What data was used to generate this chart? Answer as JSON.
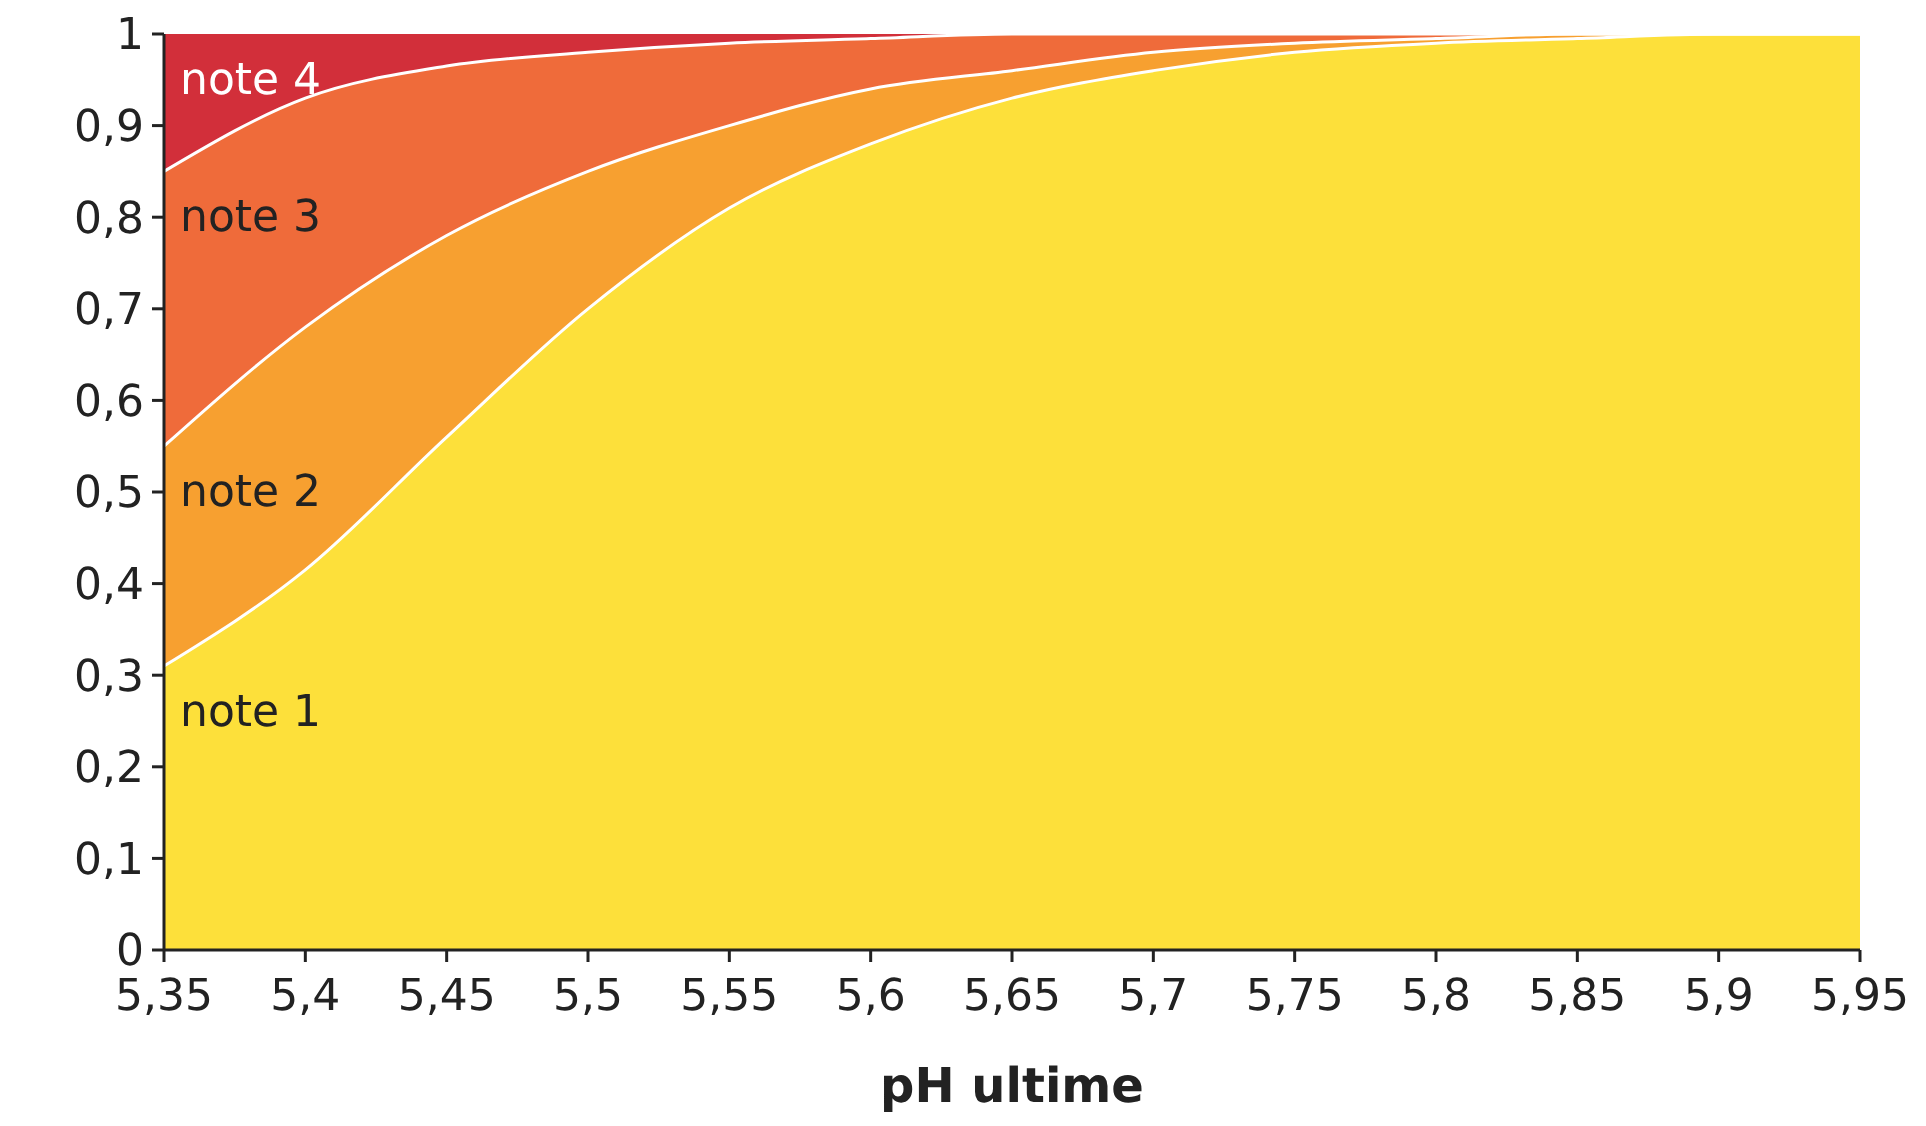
{
  "chart_data": {
    "type": "area",
    "stacked": true,
    "xlabel": "pH ultime",
    "grid": false,
    "x": [
      5.35,
      5.4,
      5.45,
      5.5,
      5.55,
      5.6,
      5.65,
      5.7,
      5.75,
      5.8,
      5.85,
      5.9,
      5.95
    ],
    "series": [
      {
        "name": "note 1",
        "color": "#fde03a",
        "values": [
          0.31,
          0.415,
          0.56,
          0.7,
          0.81,
          0.88,
          0.93,
          0.96,
          0.98,
          0.99,
          0.995,
          1,
          1
        ]
      },
      {
        "name": "note 2",
        "color": "#f7a030",
        "values": [
          0.24,
          0.265,
          0.22,
          0.15,
          0.09,
          0.06,
          0.03,
          0.02,
          0.01,
          0.005,
          0.005,
          0,
          0
        ]
      },
      {
        "name": "note 3",
        "color": "#ef6b3a",
        "values": [
          0.3,
          0.25,
          0.185,
          0.13,
          0.09,
          0.055,
          0.04,
          0.02,
          0.01,
          0.005,
          0,
          0,
          0
        ]
      },
      {
        "name": "note 4",
        "color": "#d22f3a",
        "values": [
          0.15,
          0.07,
          0.035,
          0.02,
          0.01,
          0.005,
          0,
          0,
          0,
          0,
          0,
          0,
          0
        ]
      }
    ],
    "xlim": [
      5.35,
      5.95
    ],
    "xticks": [
      {
        "value": 5.35,
        "label": "5,35"
      },
      {
        "value": 5.4,
        "label": "5,4"
      },
      {
        "value": 5.45,
        "label": "5,45"
      },
      {
        "value": 5.5,
        "label": "5,5"
      },
      {
        "value": 5.55,
        "label": "5,55"
      },
      {
        "value": 5.6,
        "label": "5,6"
      },
      {
        "value": 5.65,
        "label": "5,65"
      },
      {
        "value": 5.7,
        "label": "5,7"
      },
      {
        "value": 5.75,
        "label": "5,75"
      },
      {
        "value": 5.8,
        "label": "5,8"
      },
      {
        "value": 5.85,
        "label": "5,85"
      },
      {
        "value": 5.9,
        "label": "5,9"
      },
      {
        "value": 5.95,
        "label": "5,95"
      }
    ],
    "ylim": [
      0,
      1
    ],
    "yticks": [
      0,
      {
        "value": 0.1,
        "label": "0,1"
      },
      {
        "value": 0.2,
        "label": "0,2"
      },
      {
        "value": 0.3,
        "label": "0,3"
      },
      {
        "value": 0.4,
        "label": "0,4"
      },
      {
        "value": 0.5,
        "label": "0,5"
      },
      {
        "value": 0.6,
        "label": "0,6"
      },
      {
        "value": 0.7,
        "label": "0,7"
      },
      {
        "value": 0.8,
        "label": "0,8"
      },
      {
        "value": 0.9,
        "label": "0,9"
      },
      1
    ]
  }
}
